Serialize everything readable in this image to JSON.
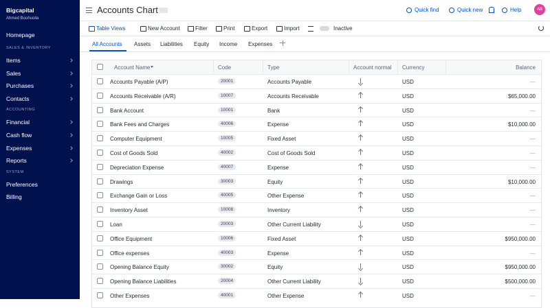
{
  "sidebar": {
    "brand": "Bigcapital",
    "user": "Ahmed Bouhuolia",
    "home": "Homepage",
    "groups": [
      {
        "title": "SALES & INVENTORY",
        "submenu": true,
        "items": [
          "Items",
          "Sales",
          "Purchases",
          "Contacts"
        ]
      },
      {
        "title": "ACCOUNTING",
        "submenu": true,
        "items": [
          "Financial",
          "Cash flow",
          "Expenses",
          "Reports"
        ]
      },
      {
        "title": "SYSTEM",
        "submenu": false,
        "items": [
          "Preferences",
          "Billing"
        ]
      }
    ]
  },
  "header": {
    "title": "Accounts Chart",
    "actions": [
      "Quick find",
      "Quick new",
      "Help"
    ],
    "avatar": "AB"
  },
  "toolbar": {
    "buttons": [
      "Table Views",
      "New Account",
      "Filter",
      "Print",
      "Export",
      "Import"
    ],
    "toggle": "Inactive"
  },
  "tabs": [
    "All Accounts",
    "Assets",
    "Liabilities",
    "Equity",
    "Income",
    "Expenses"
  ],
  "table": {
    "columns": [
      "Account Name",
      "Code",
      "Type",
      "Account normal",
      "Currency",
      "Balance"
    ],
    "rows": [
      {
        "name": "Accounts Payable (A/P)",
        "code": "20001",
        "type": "Accounts Payable",
        "normal": "down",
        "currency": "USD",
        "balance": "—"
      },
      {
        "name": "Accounts Receivable (A/R)",
        "code": "10007",
        "type": "Accounts Receivable",
        "normal": "up",
        "currency": "USD",
        "balance": "$65,000.00"
      },
      {
        "name": "Bank Account",
        "code": "10001",
        "type": "Bank",
        "normal": "up",
        "currency": "USD",
        "balance": "—"
      },
      {
        "name": "Bank Fees and Charges",
        "code": "40006",
        "type": "Expense",
        "normal": "up",
        "currency": "USD",
        "balance": "$10,000.00"
      },
      {
        "name": "Computer Equipment",
        "code": "10005",
        "type": "Fixed Asset",
        "normal": "up",
        "currency": "USD",
        "balance": "—"
      },
      {
        "name": "Cost of Goods Sold",
        "code": "40002",
        "type": "Cost of Goods Sold",
        "normal": "up",
        "currency": "USD",
        "balance": "—"
      },
      {
        "name": "Depreciation Expense",
        "code": "40007",
        "type": "Expense",
        "normal": "up",
        "currency": "USD",
        "balance": "—"
      },
      {
        "name": "Drawings",
        "code": "30003",
        "type": "Equity",
        "normal": "up",
        "currency": "USD",
        "balance": "$10,000.00"
      },
      {
        "name": "Exchange Gain or Loss",
        "code": "40005",
        "type": "Other Expense",
        "normal": "up",
        "currency": "USD",
        "balance": "—"
      },
      {
        "name": "Inventory Asset",
        "code": "10008",
        "type": "Inventory",
        "normal": "up",
        "currency": "USD",
        "balance": "—"
      },
      {
        "name": "Loan",
        "code": "20003",
        "type": "Other Current Liability",
        "normal": "down",
        "currency": "USD",
        "balance": "—"
      },
      {
        "name": "Office Equipment",
        "code": "10006",
        "type": "Fixed Asset",
        "normal": "up",
        "currency": "USD",
        "balance": "$950,000.00"
      },
      {
        "name": "Office expenses",
        "code": "40003",
        "type": "Expense",
        "normal": "up",
        "currency": "USD",
        "balance": "—"
      },
      {
        "name": "Opening Balance Equity",
        "code": "30002",
        "type": "Equity",
        "normal": "down",
        "currency": "USD",
        "balance": "$950,000.00"
      },
      {
        "name": "Opening Balance Liabilities",
        "code": "20004",
        "type": "Other Current Liability",
        "normal": "down",
        "currency": "USD",
        "balance": "$500,000.00"
      },
      {
        "name": "Other Expenses",
        "code": "40001",
        "type": "Other Expense",
        "normal": "up",
        "currency": "USD",
        "balance": "—"
      }
    ]
  }
}
